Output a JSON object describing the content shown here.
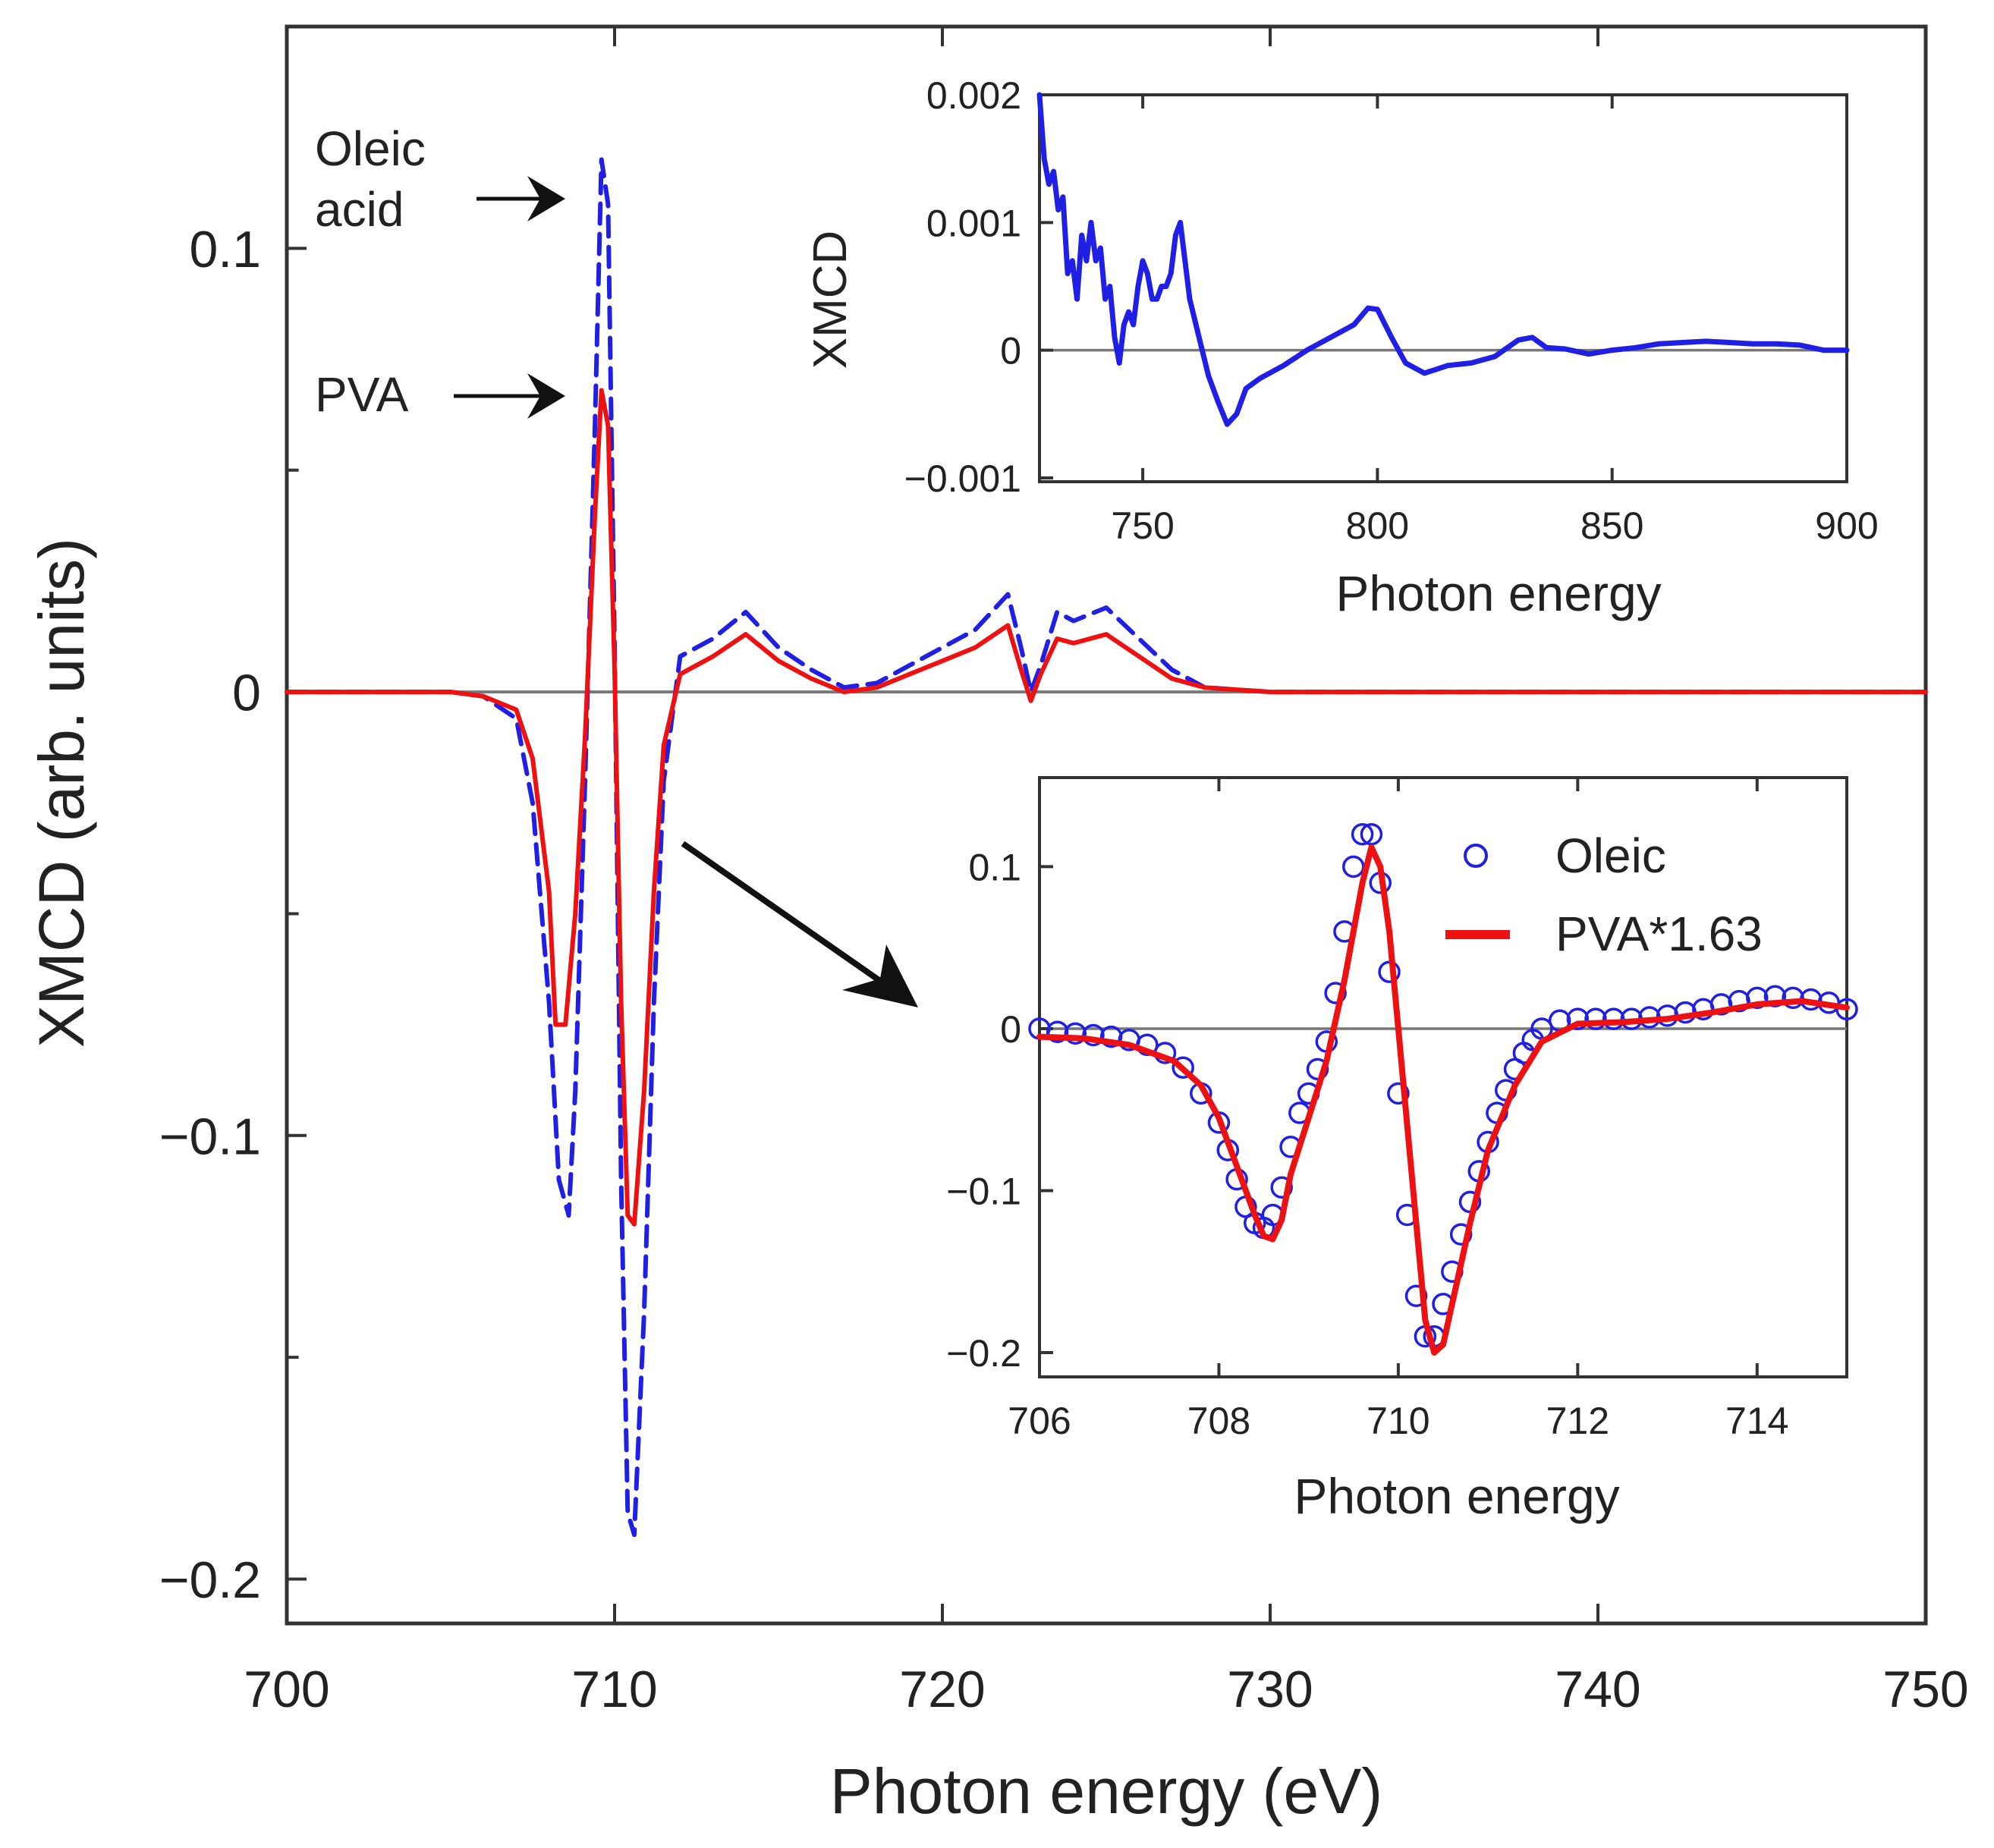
{
  "colors": {
    "oleic": "#1f1fe6",
    "pva": "#ee1111",
    "axis": "#333333",
    "zero_line": "#777777",
    "arrow": "#111111"
  },
  "chart_data": [
    {
      "id": "main",
      "type": "line",
      "xlabel": "Photon energy (eV)",
      "ylabel": "XMCD (arb. units)",
      "xlim": [
        700,
        750
      ],
      "ylim": [
        -0.21,
        0.15
      ],
      "xticks": [
        700,
        710,
        720,
        730,
        740,
        750
      ],
      "xtick_labels": [
        "700",
        "710",
        "720",
        "730",
        "740",
        "750"
      ],
      "yticks": [
        0.1,
        0,
        -0.1,
        -0.2
      ],
      "ytick_labels": [
        "0.1",
        "0",
        "−0.1",
        "−0.2"
      ],
      "minor_yticks": [
        0.05,
        -0.05,
        -0.15
      ],
      "annotations": {
        "oleic_line1": "Oleic",
        "oleic_line2": "acid",
        "pva": "PVA"
      },
      "series": [
        {
          "name": "Oleic acid",
          "style": "dashed",
          "color": "#1f1fe6",
          "x": [
            700,
            705,
            706,
            707,
            707.5,
            708,
            708.3,
            708.6,
            708.8,
            709.1,
            709.4,
            709.6,
            709.8,
            710,
            710.2,
            710.4,
            710.6,
            710.9,
            711.2,
            711.5,
            712,
            713,
            714,
            715,
            716,
            717,
            718,
            719,
            720,
            721,
            722,
            722.4,
            722.7,
            723,
            723.5,
            724,
            725,
            726,
            727,
            728,
            730,
            735,
            740,
            745,
            750
          ],
          "y": [
            0,
            0,
            -0.001,
            -0.006,
            -0.025,
            -0.07,
            -0.11,
            -0.118,
            -0.09,
            -0.02,
            0.06,
            0.12,
            0.11,
            0.01,
            -0.11,
            -0.185,
            -0.19,
            -0.14,
            -0.07,
            -0.02,
            0.008,
            0.012,
            0.018,
            0.01,
            0.005,
            0.001,
            0.002,
            0.006,
            0.01,
            0.014,
            0.022,
            0.01,
            0,
            0.006,
            0.018,
            0.016,
            0.019,
            0.012,
            0.005,
            0.001,
            0,
            0,
            0,
            0,
            0
          ]
        },
        {
          "name": "PVA",
          "style": "solid",
          "color": "#ee1111",
          "x": [
            700,
            705,
            706,
            707,
            707.5,
            708,
            708.2,
            708.5,
            708.8,
            709.1,
            709.4,
            709.6,
            709.8,
            710,
            710.2,
            710.4,
            710.6,
            710.9,
            711.2,
            711.5,
            712,
            713,
            714,
            715,
            716,
            717,
            718,
            719,
            720,
            721,
            722,
            722.4,
            722.7,
            723,
            723.5,
            724,
            725,
            726,
            727,
            728,
            730,
            735,
            740,
            745,
            750
          ],
          "y": [
            0,
            0,
            -0.001,
            -0.004,
            -0.015,
            -0.045,
            -0.075,
            -0.075,
            -0.05,
            -0.01,
            0.04,
            0.068,
            0.06,
            0.005,
            -0.07,
            -0.118,
            -0.12,
            -0.09,
            -0.045,
            -0.012,
            0.004,
            0.008,
            0.013,
            0.007,
            0.003,
            0,
            0.001,
            0.004,
            0.007,
            0.01,
            0.015,
            0.005,
            -0.002,
            0.004,
            0.012,
            0.011,
            0.013,
            0.008,
            0.003,
            0.001,
            0,
            0,
            0,
            0,
            0
          ]
        }
      ]
    },
    {
      "id": "inset_top",
      "type": "line",
      "xlabel": "Photon energy",
      "ylabel": "XMCD",
      "xlim": [
        728,
        900
      ],
      "ylim": [
        -0.00103,
        0.002
      ],
      "xticks": [
        750,
        800,
        850,
        900
      ],
      "xtick_labels": [
        "750",
        "800",
        "850",
        "900"
      ],
      "yticks": [
        0.002,
        0.001,
        0,
        -0.001
      ],
      "ytick_labels": [
        "0.002",
        "0.001",
        "0",
        "−0.001"
      ],
      "series": [
        {
          "name": "Oleic acid",
          "style": "solid",
          "color": "#1f1fe6",
          "x": [
            728,
            729,
            730,
            731,
            732,
            733,
            734,
            735,
            736,
            737,
            738,
            739,
            740,
            741,
            742,
            743,
            744,
            745,
            746,
            747,
            748,
            749,
            750,
            751,
            752,
            753,
            754,
            755,
            756,
            757,
            758,
            759,
            760,
            762,
            764,
            766,
            768,
            770,
            772,
            775,
            780,
            785,
            790,
            795,
            798,
            800,
            803,
            806,
            810,
            815,
            820,
            825,
            830,
            833,
            836,
            840,
            845,
            850,
            855,
            860,
            865,
            870,
            875,
            880,
            885,
            890,
            895,
            900
          ],
          "y": [
            0.002,
            0.0015,
            0.0013,
            0.0014,
            0.0011,
            0.0012,
            0.0006,
            0.0007,
            0.0004,
            0.0009,
            0.0007,
            0.001,
            0.0007,
            0.0008,
            0.0004,
            0.0005,
            0.0001,
            -0.0001,
            0.0002,
            0.0003,
            0.0002,
            0.0005,
            0.0007,
            0.0006,
            0.0004,
            0.0004,
            0.0005,
            0.0005,
            0.0006,
            0.0009,
            0.001,
            0.0007,
            0.0004,
            0.0001,
            -0.0002,
            -0.0004,
            -0.00058,
            -0.0005,
            -0.0003,
            -0.00022,
            -0.00012,
            0.0,
            0.0001,
            0.0002,
            0.00033,
            0.00032,
            0.0001,
            -0.0001,
            -0.00018,
            -0.00012,
            -0.0001,
            -5e-05,
            8e-05,
            0.0001,
            2e-05,
            1e-05,
            -3e-05,
            0.0,
            2e-05,
            5e-05,
            6e-05,
            7e-05,
            6e-05,
            5e-05,
            5e-05,
            4e-05,
            0.0,
            0.0
          ]
        }
      ]
    },
    {
      "id": "inset_bottom",
      "type": "line",
      "xlabel": "Photon energy",
      "ylabel": "",
      "xlim": [
        706,
        715
      ],
      "ylim": [
        -0.215,
        0.155
      ],
      "xticks": [
        706,
        708,
        710,
        712,
        714
      ],
      "xtick_labels": [
        "706",
        "708",
        "710",
        "712",
        "714"
      ],
      "yticks": [
        0.1,
        0,
        -0.1,
        -0.2
      ],
      "ytick_labels": [
        "0.1",
        "0",
        "−0.1",
        "−0.2"
      ],
      "legend": {
        "position": "top-right",
        "entries": [
          "Oleic",
          "PVA*1.63"
        ]
      },
      "series": [
        {
          "name": "Oleic",
          "style": "circles",
          "color": "#1f1fe6",
          "x": [
            706,
            706.2,
            706.4,
            706.6,
            706.8,
            707,
            707.2,
            707.4,
            707.6,
            707.8,
            708,
            708.1,
            708.2,
            708.3,
            708.4,
            708.5,
            708.6,
            708.7,
            708.8,
            708.9,
            709,
            709.1,
            709.2,
            709.3,
            709.4,
            709.5,
            709.6,
            709.7,
            709.8,
            709.9,
            710,
            710.1,
            710.2,
            710.3,
            710.4,
            710.5,
            710.6,
            710.7,
            710.8,
            710.9,
            711,
            711.1,
            711.2,
            711.3,
            711.4,
            711.5,
            711.6,
            711.8,
            712,
            712.2,
            712.4,
            712.6,
            712.8,
            713,
            713.2,
            713.4,
            713.6,
            713.8,
            714,
            714.2,
            714.4,
            714.6,
            714.8,
            715
          ],
          "y": [
            0,
            -0.002,
            -0.003,
            -0.004,
            -0.005,
            -0.007,
            -0.01,
            -0.015,
            -0.024,
            -0.04,
            -0.058,
            -0.075,
            -0.093,
            -0.11,
            -0.12,
            -0.123,
            -0.115,
            -0.098,
            -0.073,
            -0.052,
            -0.04,
            -0.025,
            -0.008,
            0.022,
            0.06,
            0.1,
            0.12,
            0.12,
            0.09,
            0.035,
            -0.04,
            -0.115,
            -0.165,
            -0.19,
            -0.19,
            -0.17,
            -0.15,
            -0.127,
            -0.107,
            -0.088,
            -0.07,
            -0.052,
            -0.038,
            -0.025,
            -0.015,
            -0.007,
            0,
            0.005,
            0.006,
            0.006,
            0.006,
            0.006,
            0.007,
            0.008,
            0.01,
            0.012,
            0.015,
            0.017,
            0.019,
            0.02,
            0.019,
            0.018,
            0.016,
            0.012
          ]
        },
        {
          "name": "PVA*1.63",
          "style": "solid",
          "color": "#ee1111",
          "x": [
            706,
            706.5,
            707,
            707.5,
            707.8,
            708,
            708.2,
            708.4,
            708.5,
            708.6,
            708.7,
            708.8,
            709,
            709.2,
            709.4,
            709.6,
            709.7,
            709.8,
            709.9,
            710,
            710.2,
            710.3,
            710.4,
            710.5,
            710.6,
            710.8,
            711,
            711.3,
            711.6,
            712,
            712.5,
            713,
            713.5,
            714,
            714.5,
            715
          ],
          "y": [
            -0.005,
            -0.006,
            -0.01,
            -0.02,
            -0.035,
            -0.055,
            -0.085,
            -0.115,
            -0.128,
            -0.13,
            -0.118,
            -0.09,
            -0.055,
            -0.02,
            0.03,
            0.09,
            0.112,
            0.1,
            0.06,
            0.0,
            -0.12,
            -0.18,
            -0.2,
            -0.195,
            -0.17,
            -0.12,
            -0.075,
            -0.035,
            -0.008,
            0.003,
            0.004,
            0.006,
            0.01,
            0.015,
            0.017,
            0.013
          ]
        }
      ]
    }
  ]
}
